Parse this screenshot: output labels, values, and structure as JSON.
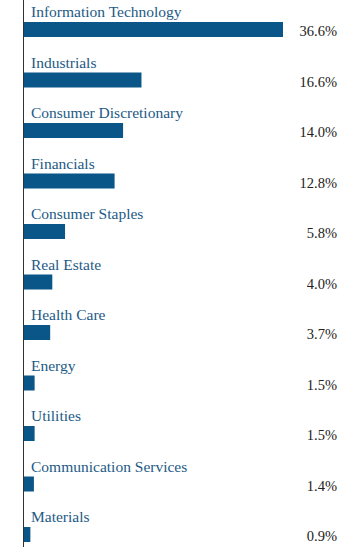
{
  "chart_data": {
    "type": "bar",
    "orientation": "horizontal",
    "categories": [
      "Information Technology",
      "Industrials",
      "Consumer Discretionary",
      "Financials",
      "Consumer Staples",
      "Real Estate",
      "Health Care",
      "Energy",
      "Utilities",
      "Communication Services",
      "Materials"
    ],
    "values": [
      36.6,
      16.6,
      14.0,
      12.8,
      5.8,
      4.0,
      3.7,
      1.5,
      1.5,
      1.4,
      0.9
    ],
    "value_labels": [
      "36.6%",
      "16.6%",
      "14.0%",
      "12.8%",
      "5.8%",
      "4.0%",
      "3.7%",
      "1.5%",
      "1.5%",
      "1.4%",
      "0.9%"
    ],
    "color": "#0b5688",
    "xlim": [
      0,
      36.6
    ],
    "data_labels": true,
    "tick_labels": false,
    "grid": false
  }
}
